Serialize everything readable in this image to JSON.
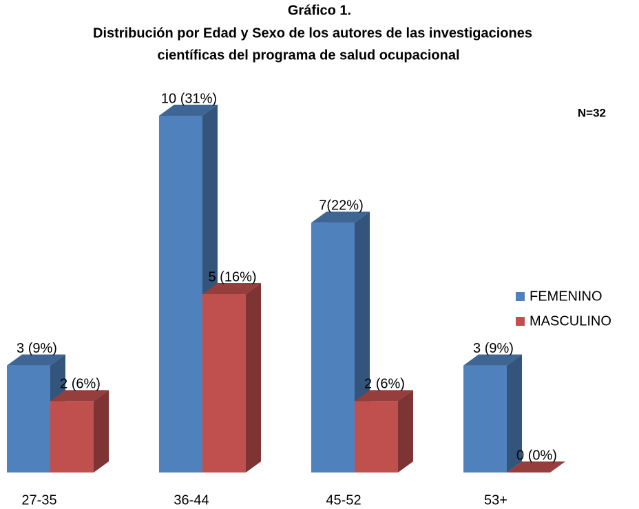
{
  "chart_data": {
    "type": "bar3d",
    "title": [
      "Gráfico 1.",
      "Distribución por Edad y Sexo de los autores de las investigaciones",
      "científicas del programa de salud ocupacional"
    ],
    "annotations": [
      "N=32"
    ],
    "categories": [
      "27-35",
      "36-44",
      "45-52",
      "53+"
    ],
    "series": [
      {
        "name": "FEMENINO",
        "color": "#4f81bd",
        "values": [
          3,
          10,
          7,
          3
        ],
        "value_labels": [
          "3 (9%)",
          "10 (31%)",
          "7(22%)",
          "3 (9%)"
        ]
      },
      {
        "name": "MASCULINO",
        "color": "#c0504d",
        "values": [
          2,
          5,
          2,
          0
        ],
        "value_labels": [
          "2 (6%)",
          "5 (16%)",
          "2 (6%)",
          "0 (0%)"
        ]
      }
    ],
    "legend": "right"
  }
}
